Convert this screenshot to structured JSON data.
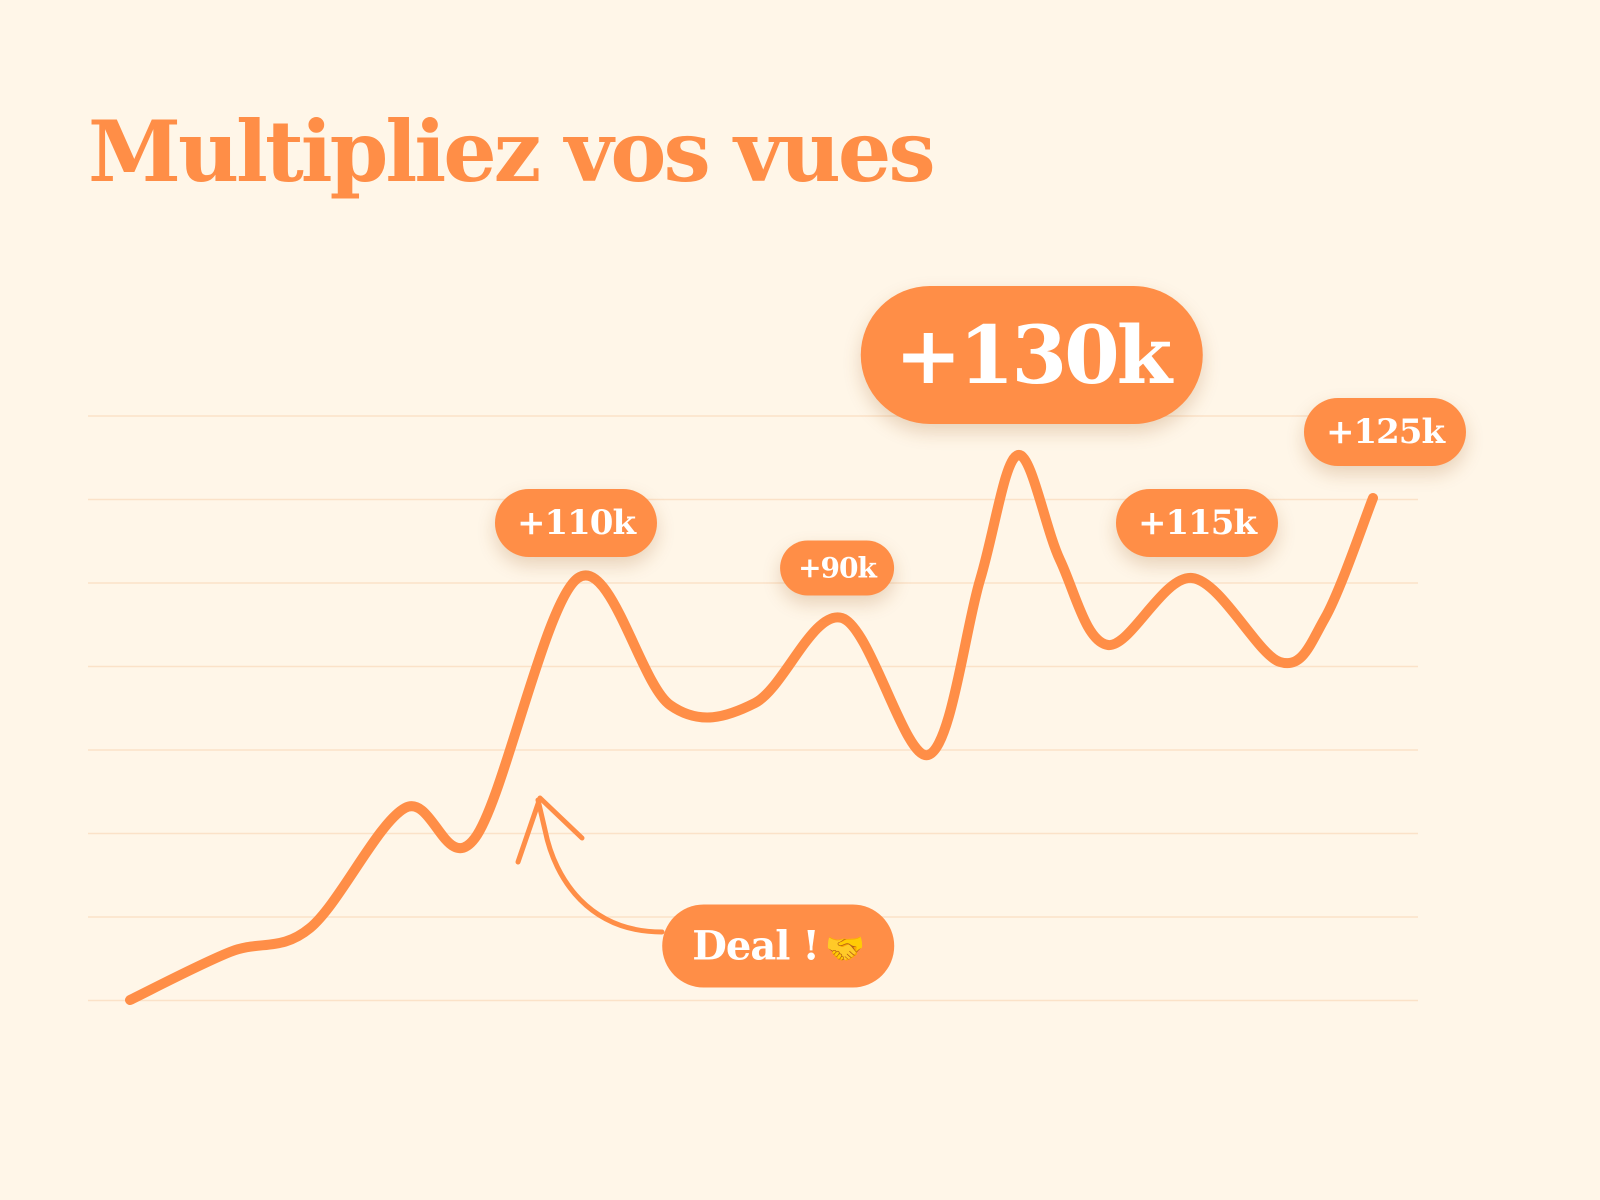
{
  "title": "Multipliez vos vues",
  "colors": {
    "background": "#fff6e8",
    "accent": "#ff8e47",
    "label_text": "#ffffff",
    "gridline": "#fbe2c8"
  },
  "chart_data": {
    "type": "line",
    "title": "Multipliez vos vues",
    "xlabel": "",
    "ylabel": "",
    "grid": true,
    "gridline_count": 8,
    "legend": "none",
    "labels": [
      {
        "text": "+110k",
        "point_index": 5,
        "size": "small"
      },
      {
        "text": "+90k",
        "point_index": 9,
        "size": "tiny"
      },
      {
        "text": "+130k",
        "point_index": 13,
        "size": "big"
      },
      {
        "text": "+115k",
        "point_index": 17,
        "size": "small"
      },
      {
        "text": "+125k",
        "point_index": 21,
        "size": "small"
      }
    ],
    "annotation": {
      "text": "Deal !",
      "emoji": "🤝",
      "points_to_index": 4
    }
  }
}
